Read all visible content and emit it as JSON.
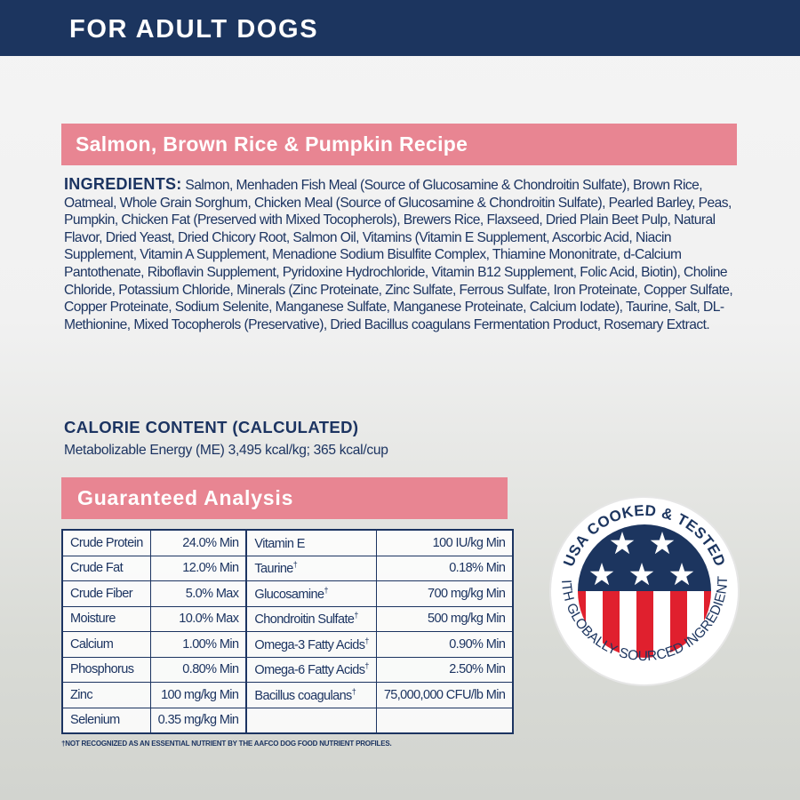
{
  "header": {
    "title": "FOR ADULT DOGS"
  },
  "recipe": {
    "title": "Salmon, Brown Rice & Pumpkin Recipe"
  },
  "ingredients": {
    "label": "INGREDIENTS:",
    "text": "Salmon, Menhaden Fish Meal (Source of Glucosamine & Chondroitin Sulfate), Brown Rice, Oatmeal, Whole Grain Sorghum, Chicken Meal (Source of Glucosamine & Chondroitin Sulfate), Pearled Barley, Peas, Pumpkin, Chicken Fat (Preserved with Mixed Tocopherols), Brewers Rice, Flaxseed, Dried Plain Beet Pulp, Natural Flavor, Dried Yeast, Dried Chicory Root, Salmon Oil, Vitamins (Vitamin E Supplement, Ascorbic Acid, Niacin Supplement, Vitamin A Supplement, Menadione Sodium Bisulfite Complex, Thiamine Mononitrate, d-Calcium Pantothenate, Riboflavin Supplement, Pyridoxine Hydrochloride, Vitamin B12 Supplement, Folic Acid, Biotin), Choline Chloride, Potassium Chloride, Minerals (Zinc Proteinate, Zinc Sulfate, Ferrous Sulfate, Iron Proteinate, Copper Sulfate, Copper Proteinate, Sodium Selenite, Manganese Sulfate, Manganese Proteinate, Calcium Iodate), Taurine, Salt, DL-Methionine, Mixed Tocopherols (Preservative), Dried Bacillus coagulans Fermentation Product, Rosemary Extract."
  },
  "calorie": {
    "heading": "CALORIE CONTENT (CALCULATED)",
    "value": "Metabolizable Energy (ME) 3,495 kcal/kg; 365 kcal/cup"
  },
  "analysis": {
    "title": "Guaranteed Analysis",
    "rows": [
      {
        "n1": "Crude Protein",
        "v1": "24.0% Min",
        "n2": "Vitamin E",
        "d2": "",
        "v2": "100 IU/kg Min"
      },
      {
        "n1": "Crude Fat",
        "v1": "12.0% Min",
        "n2": "Taurine",
        "d2": "†",
        "v2": "0.18% Min"
      },
      {
        "n1": "Crude Fiber",
        "v1": "5.0% Max",
        "n2": "Glucosamine",
        "d2": "†",
        "v2": "700 mg/kg Min"
      },
      {
        "n1": "Moisture",
        "v1": "10.0% Max",
        "n2": "Chondroitin Sulfate",
        "d2": "†",
        "v2": "500 mg/kg Min"
      },
      {
        "n1": "Calcium",
        "v1": "1.00% Min",
        "n2": "Omega-3 Fatty Acids",
        "d2": "†",
        "v2": "0.90% Min"
      },
      {
        "n1": "Phosphorus",
        "v1": "0.80% Min",
        "n2": "Omega-6 Fatty Acids",
        "d2": "†",
        "v2": "2.50% Min"
      },
      {
        "n1": "Zinc",
        "v1": "100 mg/kg Min",
        "n2": "Bacillus coagulans",
        "d2": "†",
        "v2": "75,000,000 CFU/lb Min"
      },
      {
        "n1": "Selenium",
        "v1": "0.35 mg/kg Min",
        "n2": "",
        "d2": "",
        "v2": ""
      }
    ],
    "footnote": "†NOT RECOGNIZED AS AN ESSENTIAL NUTRIENT BY THE AAFCO DOG FOOD NUTRIENT PROFILES."
  },
  "seal": {
    "top_text": "USA COOKED & TESTED",
    "bottom_text": "WITH GLOBALLY SOURCED INGREDIENTS",
    "colors": {
      "navy": "#1c355f",
      "red": "#e0202e",
      "white": "#ffffff"
    }
  },
  "colors": {
    "navy": "#1c355f",
    "pink": "#e88592"
  }
}
